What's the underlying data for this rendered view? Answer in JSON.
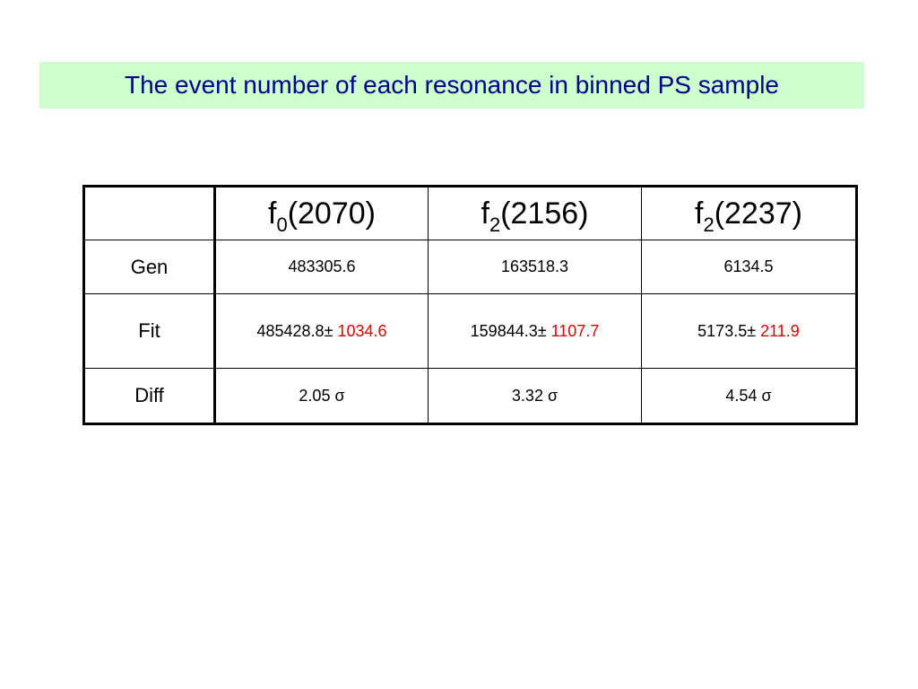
{
  "title": "The event number of each resonance in binned PS sample",
  "table": {
    "columns": [
      {
        "base": "f",
        "sub": "0",
        "mass": "(2070)"
      },
      {
        "base": "f",
        "sub": "2",
        "mass": "(2156)"
      },
      {
        "base": "f",
        "sub": "2",
        "mass": "(2237)"
      }
    ],
    "rows": {
      "gen": {
        "label": "Gen",
        "values": [
          "483305.6",
          "163518.3",
          "6134.5"
        ]
      },
      "fit": {
        "label": "Fit",
        "values": [
          {
            "value": "485428.8",
            "pm": "± ",
            "error": "1034.6"
          },
          {
            "value": "159844.3",
            "pm": "± ",
            "error": "1107.7"
          },
          {
            "value": "5173.5",
            "pm": "± ",
            "error": "211.9"
          }
        ]
      },
      "diff": {
        "label": "Diff",
        "values": [
          "2.05 σ",
          "3.32 σ",
          "4.54 σ"
        ]
      }
    }
  },
  "colors": {
    "title_background": "#ccffcc",
    "title_text": "#00008b",
    "error_text": "#e00000"
  }
}
